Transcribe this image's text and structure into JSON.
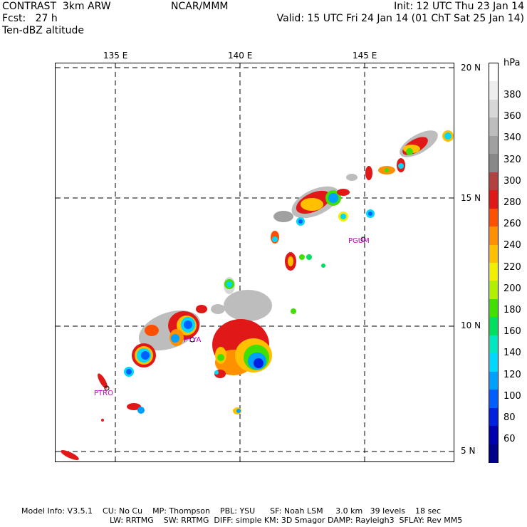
{
  "header": {
    "model": "CONTRAST  3km ARW",
    "forecast": "Fcst:   27 h",
    "field": "Ten-dBZ altitude",
    "org": "NCAR/MMM",
    "init": "Init: 12 UTC Thu 23 Jan 14",
    "valid": "Valid: 15 UTC Fri 24 Jan 14 (01 ChT Sat 25 Jan 14)"
  },
  "map": {
    "lon_labels": [
      "135 E",
      "140 E",
      "145 E"
    ],
    "lat_labels": [
      "20 N",
      "15 N",
      "10 N",
      "5 N"
    ],
    "stations": [
      {
        "name": "PGUM"
      },
      {
        "name": "PTYA"
      },
      {
        "name": "PTRO"
      }
    ]
  },
  "colorbar": {
    "unit": "hPa",
    "labels": [
      "380",
      "360",
      "340",
      "320",
      "300",
      "280",
      "260",
      "240",
      "220",
      "200",
      "180",
      "160",
      "140",
      "120",
      "100",
      "80",
      "60"
    ],
    "colors": [
      "#ffffff",
      "#eeeeee",
      "#d7d7d7",
      "#bdbdbd",
      "#a0a0a0",
      "#888888",
      "#b44040",
      "#e01818",
      "#ff5000",
      "#ff9000",
      "#ffc000",
      "#f0f000",
      "#b0f000",
      "#40e000",
      "#00e060",
      "#00e8c0",
      "#00d8ff",
      "#00a0ff",
      "#0060ff",
      "#0020e0",
      "#0000b0",
      "#00008a"
    ]
  },
  "footer": {
    "line1": "Model Info: V3.5.1    CU: No Cu    MP: Thompson    PBL: YSU      SF: Noah LSM     3.0 km   39 levels    18 sec",
    "line2": "LW: RRTMG    SW: RRTMG  DIFF: simple KM: 3D Smagor DAMP: Rayleigh3  SFLAY: Rev MM5"
  }
}
